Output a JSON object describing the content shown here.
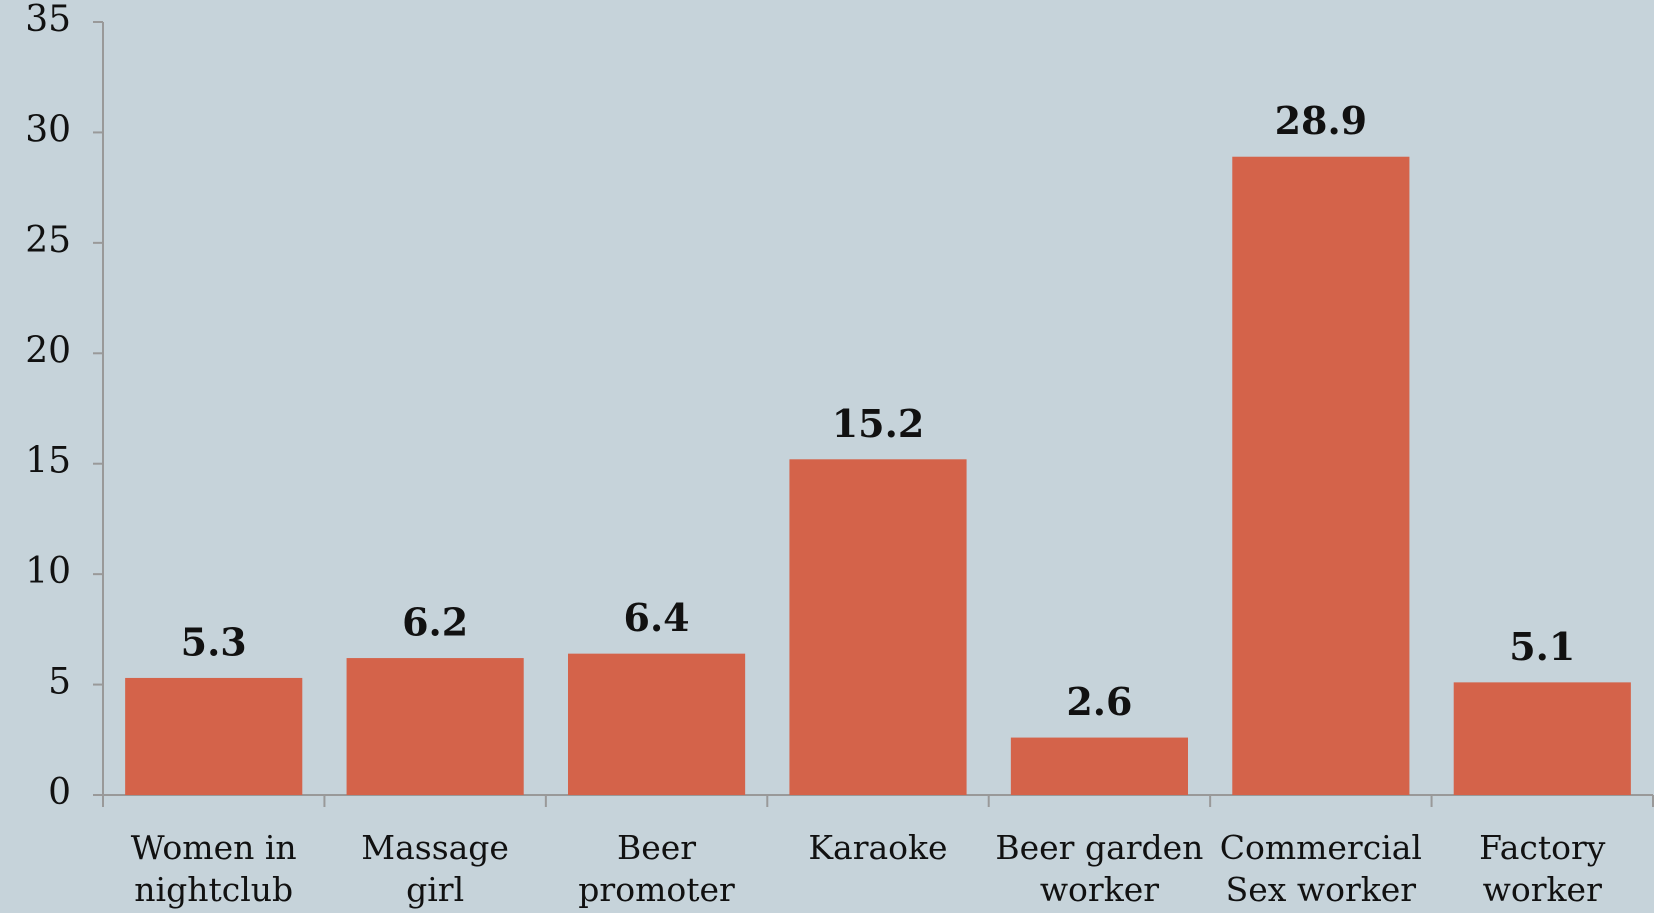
{
  "chart_data": {
    "type": "bar",
    "categories": [
      "Women in nightclub",
      "Massage girl",
      "Beer promoter",
      "Karaoke",
      "Beer garden worker",
      "Commercial Sex worker",
      "Factory worker"
    ],
    "values": [
      5.3,
      6.2,
      6.4,
      15.2,
      2.6,
      28.9,
      5.1
    ],
    "color": "#d4634a",
    "ylim": [
      0,
      35
    ],
    "yticks": [
      0,
      5,
      10,
      15,
      20,
      25,
      30,
      35
    ],
    "grid": false
  }
}
